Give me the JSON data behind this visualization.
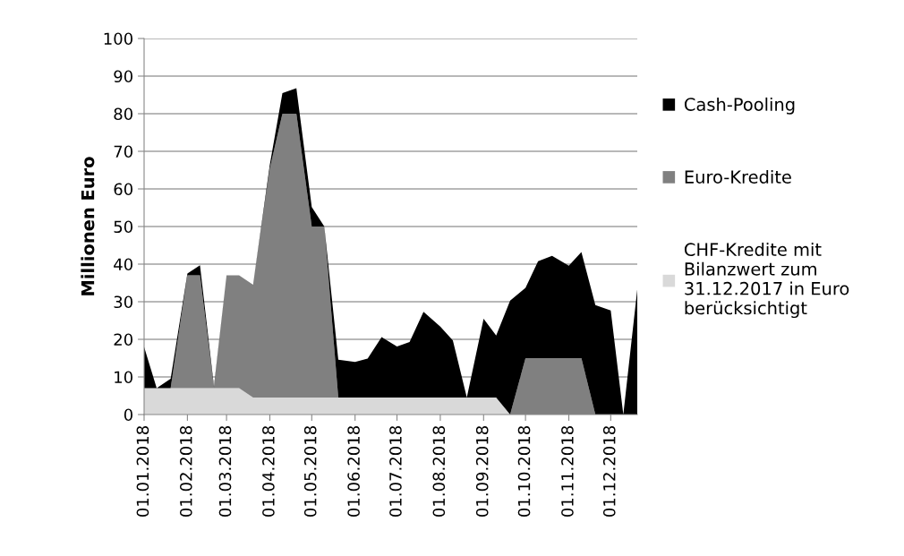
{
  "chart_data": {
    "type": "area",
    "stacked": true,
    "ylabel": "Millionen Euro",
    "x": [
      "2018-01-01",
      "2018-01-10",
      "2018-01-20",
      "2018-02-01",
      "2018-02-10",
      "2018-02-20",
      "2018-03-01",
      "2018-03-10",
      "2018-03-20",
      "2018-04-01",
      "2018-04-10",
      "2018-04-20",
      "2018-05-01",
      "2018-05-10",
      "2018-05-20",
      "2018-06-01",
      "2018-06-10",
      "2018-06-20",
      "2018-07-01",
      "2018-07-10",
      "2018-07-20",
      "2018-08-01",
      "2018-08-10",
      "2018-08-20",
      "2018-09-01",
      "2018-09-10",
      "2018-09-20",
      "2018-10-01",
      "2018-10-10",
      "2018-10-20",
      "2018-11-01",
      "2018-11-10",
      "2018-11-20",
      "2018-12-01",
      "2018-12-10",
      "2018-12-20"
    ],
    "series": [
      {
        "name": "CHF-Kredite mit\nBilanzwert zum\n31.12.2017 in Euro\nberücksichtigt",
        "color": "#d9d9d9",
        "values": [
          7,
          7,
          7,
          7,
          7,
          7,
          7,
          7,
          4.5,
          4.5,
          4.5,
          4.5,
          4.5,
          4.5,
          4.5,
          4.5,
          4.5,
          4.5,
          4.5,
          4.5,
          4.5,
          4.5,
          4.5,
          4.5,
          4.5,
          4.5,
          0,
          0,
          0,
          0,
          0,
          0,
          0,
          0,
          0,
          0
        ]
      },
      {
        "name": "Euro-Kredite",
        "color": "#808080",
        "values": [
          0,
          0,
          0,
          30,
          30,
          0,
          30,
          30,
          30,
          61,
          75.5,
          75.5,
          45.5,
          45.5,
          0,
          0,
          0,
          0,
          0,
          0,
          0,
          0,
          0,
          0,
          0,
          0,
          0,
          15,
          15,
          15,
          15,
          15,
          0,
          0,
          0,
          0
        ]
      },
      {
        "name": "Cash-Pooling",
        "color": "#000000",
        "values": [
          11,
          0,
          2.5,
          0.5,
          2.7,
          0.5,
          0,
          0,
          0,
          1,
          5.5,
          6.8,
          5.2,
          0,
          10.1,
          9.5,
          10.4,
          16.1,
          13.6,
          14.8,
          22.8,
          18.9,
          15.2,
          0,
          21,
          16.5,
          30.3,
          18.7,
          25.8,
          27.2,
          24.6,
          28.2,
          29.1,
          27.7,
          0,
          33.3
        ]
      }
    ],
    "xlim": [
      "2018-01-01",
      "2018-12-20"
    ],
    "xticks": [
      {
        "value": "2018-01-01",
        "label": "01.01.2018"
      },
      {
        "value": "2018-02-01",
        "label": "01.02.2018"
      },
      {
        "value": "2018-03-01",
        "label": "01.03.2018"
      },
      {
        "value": "2018-04-01",
        "label": "01.04.2018"
      },
      {
        "value": "2018-05-01",
        "label": "01.05.2018"
      },
      {
        "value": "2018-06-01",
        "label": "01.06.2018"
      },
      {
        "value": "2018-07-01",
        "label": "01.07.2018"
      },
      {
        "value": "2018-08-01",
        "label": "01.08.2018"
      },
      {
        "value": "2018-09-01",
        "label": "01.09.2018"
      },
      {
        "value": "2018-10-01",
        "label": "01.10.2018"
      },
      {
        "value": "2018-11-01",
        "label": "01.11.2018"
      },
      {
        "value": "2018-12-01",
        "label": "01.12.2018"
      }
    ],
    "ylim": [
      0,
      100
    ],
    "yticks": [
      0,
      10,
      20,
      30,
      40,
      50,
      60,
      70,
      80,
      90,
      100
    ],
    "grid": "y",
    "legend": "right"
  }
}
